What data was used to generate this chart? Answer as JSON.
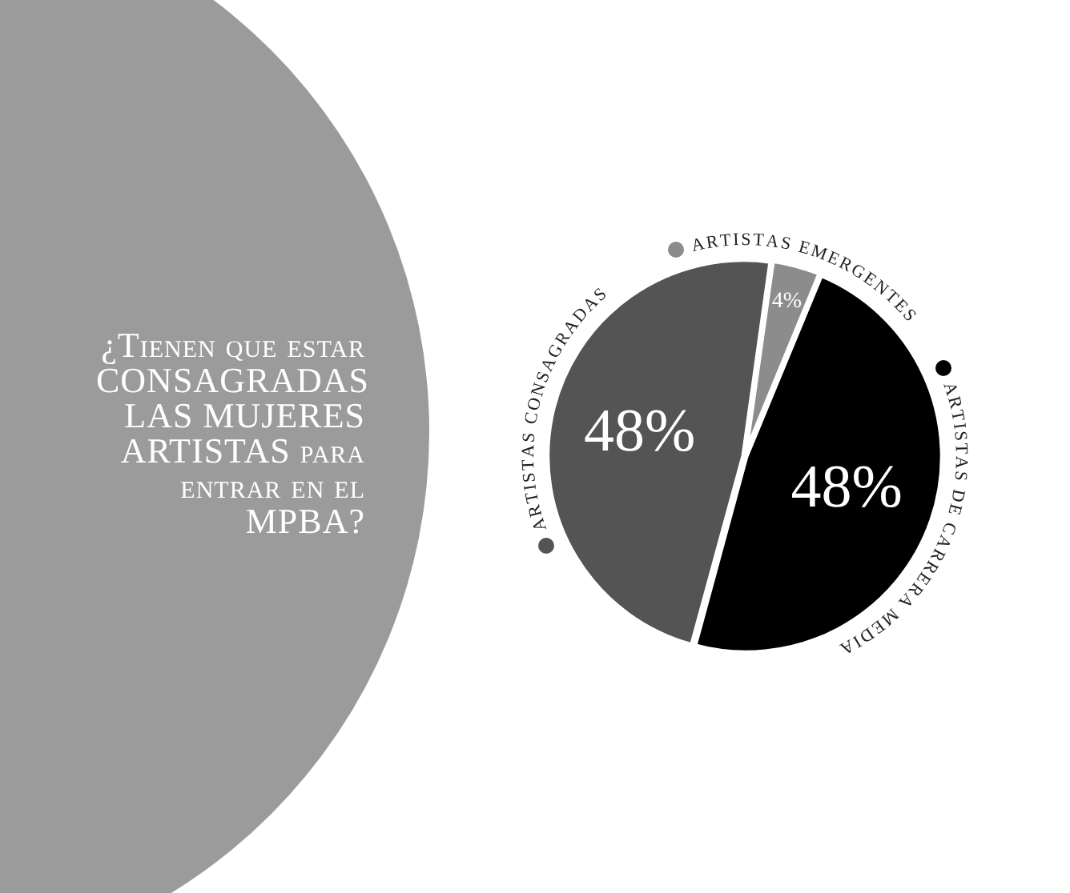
{
  "chart_data": {
    "type": "pie",
    "title": "¿Tienen que estar CONSAGRADAS LAS MUJERES ARTISTAS para entrar en el MPBA?",
    "categories": [
      "ARTISTAS EMERGENTES",
      "ARTISTAS DE CARRERA MEDIA",
      "ARTISTAS CONSAGRADAS"
    ],
    "values": [
      4,
      48,
      48
    ],
    "colors": [
      "#8c8c8c",
      "#000000",
      "#545454"
    ],
    "value_labels": [
      "4%",
      "48%",
      "48%"
    ],
    "legend": false
  }
}
